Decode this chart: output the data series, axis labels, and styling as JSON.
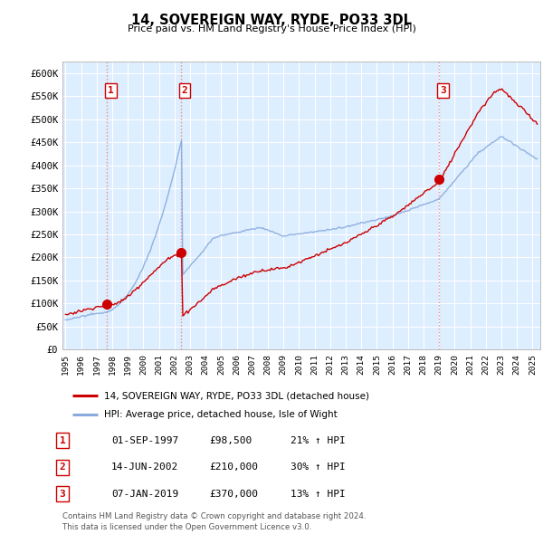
{
  "title": "14, SOVEREIGN WAY, RYDE, PO33 3DL",
  "subtitle": "Price paid vs. HM Land Registry's House Price Index (HPI)",
  "ylim": [
    0,
    620000
  ],
  "yticks": [
    0,
    50000,
    100000,
    150000,
    200000,
    250000,
    300000,
    350000,
    400000,
    450000,
    500000,
    550000,
    600000
  ],
  "ytick_labels": [
    "£0",
    "£50K",
    "£100K",
    "£150K",
    "£200K",
    "£250K",
    "£300K",
    "£350K",
    "£400K",
    "£450K",
    "£500K",
    "£550K",
    "£600K"
  ],
  "sale_prices": [
    98500,
    210000,
    370000
  ],
  "legend_line1": "14, SOVEREIGN WAY, RYDE, PO33 3DL (detached house)",
  "legend_line2": "HPI: Average price, detached house, Isle of Wight",
  "table_rows": [
    [
      "1",
      "01-SEP-1997",
      "£98,500",
      "21% ↑ HPI"
    ],
    [
      "2",
      "14-JUN-2002",
      "£210,000",
      "30% ↑ HPI"
    ],
    [
      "3",
      "07-JAN-2019",
      "£370,000",
      "13% ↑ HPI"
    ]
  ],
  "footnote1": "Contains HM Land Registry data © Crown copyright and database right 2024.",
  "footnote2": "This data is licensed under the Open Government Licence v3.0.",
  "line_color_red": "#cc0000",
  "line_color_blue": "#88aadd",
  "vline_color": "#ee8888",
  "dot_color": "#cc0000",
  "background_color": "#ddeeff",
  "grid_color": "#ffffff"
}
